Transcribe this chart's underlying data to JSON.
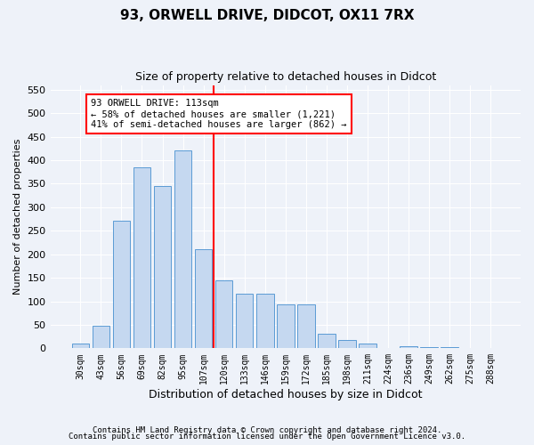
{
  "title1": "93, ORWELL DRIVE, DIDCOT, OX11 7RX",
  "title2": "Size of property relative to detached houses in Didcot",
  "xlabel": "Distribution of detached houses by size in Didcot",
  "ylabel": "Number of detached properties",
  "categories": [
    "30sqm",
    "43sqm",
    "56sqm",
    "69sqm",
    "82sqm",
    "95sqm",
    "107sqm",
    "120sqm",
    "133sqm",
    "146sqm",
    "159sqm",
    "172sqm",
    "185sqm",
    "198sqm",
    "211sqm",
    "224sqm",
    "236sqm",
    "249sqm",
    "262sqm",
    "275sqm",
    "288sqm"
  ],
  "values": [
    10,
    48,
    272,
    385,
    345,
    420,
    210,
    145,
    117,
    117,
    93,
    93,
    30,
    18,
    10,
    0,
    5,
    3,
    2,
    1,
    1
  ],
  "bar_color": "#c5d8f0",
  "bar_edge_color": "#5b9bd5",
  "marker_index": 7,
  "marker_label": "93 ORWELL DRIVE: 113sqm",
  "annotation_line1": "← 58% of detached houses are smaller (1,221)",
  "annotation_line2": "41% of semi-detached houses are larger (862) →",
  "ylim": [
    0,
    560
  ],
  "yticks": [
    0,
    50,
    100,
    150,
    200,
    250,
    300,
    350,
    400,
    450,
    500,
    550
  ],
  "footer1": "Contains HM Land Registry data © Crown copyright and database right 2024.",
  "footer2": "Contains public sector information licensed under the Open Government Licence v3.0.",
  "bg_color": "#eef2f9"
}
